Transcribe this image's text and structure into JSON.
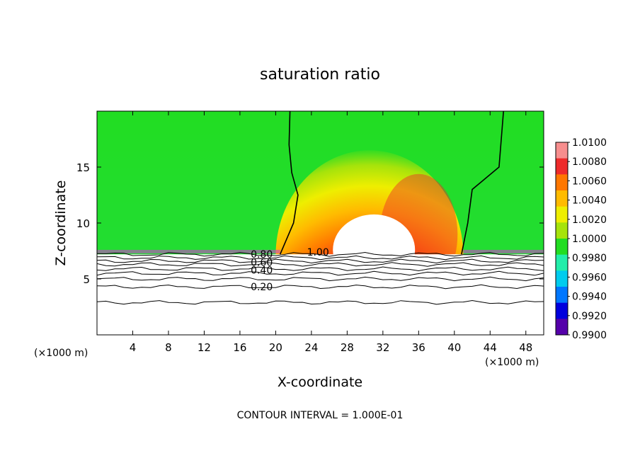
{
  "chart_data": {
    "type": "heatmap",
    "title": "saturation ratio",
    "xlabel": "X-coordinate",
    "ylabel": "Z-coordinate",
    "x_unit": "(×1000 m)",
    "xlim": [
      0,
      50
    ],
    "ylim": [
      0,
      20
    ],
    "x_ticks": [
      "4",
      "8",
      "12",
      "16",
      "20",
      "24",
      "28",
      "32",
      "36",
      "40",
      "44",
      "48"
    ],
    "y_ticks": [
      "5",
      "10",
      "15"
    ],
    "footer": "CONTOUR INTERVAL = 1.000E-01",
    "colorbar": {
      "levels": [
        "1.0100",
        "1.0080",
        "1.0060",
        "1.0040",
        "1.0020",
        "1.0000",
        "0.9980",
        "0.9960",
        "0.9940",
        "0.9920",
        "0.9900"
      ],
      "colors": [
        "#f78e8e",
        "#ee2b2b",
        "#ff7700",
        "#ffbb00",
        "#eeee00",
        "#a6e30b",
        "#22dd22",
        "#22eeaa",
        "#00ccee",
        "#0077ff",
        "#0000dd",
        "#5500aa"
      ]
    },
    "contour_labels": [
      {
        "text": "0.80",
        "x": 17.2,
        "z": 7.2
      },
      {
        "text": "0.60",
        "x": 17.2,
        "z": 6.5
      },
      {
        "text": "0.40",
        "x": 17.2,
        "z": 5.8
      },
      {
        "text": "0.20",
        "x": 17.2,
        "z": 4.3
      },
      {
        "text": "1.00",
        "x": 23.5,
        "z": 7.4
      }
    ]
  }
}
